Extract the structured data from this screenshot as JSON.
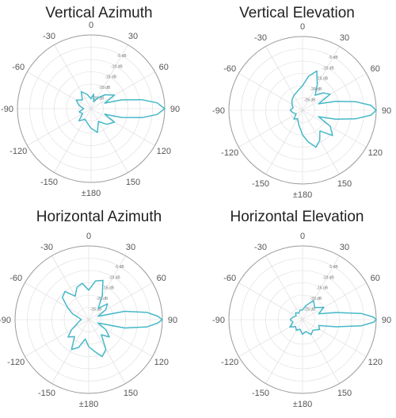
{
  "chart_data": [
    {
      "type": "polar",
      "title": "Vertical Azimuth",
      "angle_labels": [
        "0",
        "30",
        "60",
        "90",
        "120",
        "150",
        "±180",
        "-150",
        "-120",
        "-90",
        "-60",
        "-30"
      ],
      "radial_labels": [
        "-5 dB",
        "-10 dB",
        "-15 dB",
        "-20 dB",
        "-25 dB"
      ],
      "rlim_db": [
        -30,
        0
      ],
      "series_color": "#46b8c8",
      "points": [
        {
          "angle": 0,
          "db": -26
        },
        {
          "angle": 10,
          "db": -24
        },
        {
          "angle": 20,
          "db": -27
        },
        {
          "angle": 30,
          "db": -25
        },
        {
          "angle": 45,
          "db": -22
        },
        {
          "angle": 60,
          "db": -19
        },
        {
          "angle": 68,
          "db": -24
        },
        {
          "angle": 74,
          "db": -17
        },
        {
          "angle": 80,
          "db": -9
        },
        {
          "angle": 85,
          "db": -3
        },
        {
          "angle": 90,
          "db": 0
        },
        {
          "angle": 95,
          "db": -3
        },
        {
          "angle": 100,
          "db": -9
        },
        {
          "angle": 106,
          "db": -17
        },
        {
          "angle": 112,
          "db": -24
        },
        {
          "angle": 120,
          "db": -19
        },
        {
          "angle": 135,
          "db": -21
        },
        {
          "angle": 150,
          "db": -24
        },
        {
          "angle": 165,
          "db": -20
        },
        {
          "angle": 180,
          "db": -22
        },
        {
          "angle": 195,
          "db": -24
        },
        {
          "angle": 210,
          "db": -25
        },
        {
          "angle": 225,
          "db": -23
        },
        {
          "angle": 240,
          "db": -26
        },
        {
          "angle": 255,
          "db": -25
        },
        {
          "angle": 270,
          "db": -27
        },
        {
          "angle": 285,
          "db": -25
        },
        {
          "angle": 300,
          "db": -23
        },
        {
          "angle": 315,
          "db": -25
        },
        {
          "angle": 330,
          "db": -22
        },
        {
          "angle": 345,
          "db": -24
        }
      ]
    },
    {
      "type": "polar",
      "title": "Vertical Elevation",
      "angle_labels": [
        "0",
        "30",
        "60",
        "90",
        "120",
        "150",
        "±180",
        "-150",
        "-120",
        "-90",
        "-60",
        "-30"
      ],
      "radial_labels": [
        "-5 dB",
        "-10 dB",
        "-15 dB",
        "-20 dB",
        "-25 dB"
      ],
      "rlim_db": [
        -30,
        0
      ],
      "series_color": "#46b8c8",
      "points": [
        {
          "angle": 0,
          "db": -20
        },
        {
          "angle": 10,
          "db": -16
        },
        {
          "angle": 20,
          "db": -13
        },
        {
          "angle": 30,
          "db": -18
        },
        {
          "angle": 40,
          "db": -22
        },
        {
          "angle": 50,
          "db": -19
        },
        {
          "angle": 60,
          "db": -17
        },
        {
          "angle": 68,
          "db": -23
        },
        {
          "angle": 75,
          "db": -16
        },
        {
          "angle": 81,
          "db": -8
        },
        {
          "angle": 86,
          "db": -2
        },
        {
          "angle": 90,
          "db": 0
        },
        {
          "angle": 94,
          "db": -2
        },
        {
          "angle": 99,
          "db": -8
        },
        {
          "angle": 105,
          "db": -16
        },
        {
          "angle": 112,
          "db": -23
        },
        {
          "angle": 120,
          "db": -17
        },
        {
          "angle": 130,
          "db": -14
        },
        {
          "angle": 140,
          "db": -19
        },
        {
          "angle": 150,
          "db": -16
        },
        {
          "angle": 160,
          "db": -14
        },
        {
          "angle": 170,
          "db": -17
        },
        {
          "angle": 180,
          "db": -20
        },
        {
          "angle": 195,
          "db": -24
        },
        {
          "angle": 210,
          "db": -26
        },
        {
          "angle": 225,
          "db": -25
        },
        {
          "angle": 240,
          "db": -27
        },
        {
          "angle": 255,
          "db": -26
        },
        {
          "angle": 270,
          "db": -25
        },
        {
          "angle": 285,
          "db": -26
        },
        {
          "angle": 300,
          "db": -25
        },
        {
          "angle": 315,
          "db": -24
        },
        {
          "angle": 330,
          "db": -23
        },
        {
          "angle": 345,
          "db": -22
        }
      ]
    },
    {
      "type": "polar",
      "title": "Horizontal Azimuth",
      "angle_labels": [
        "0",
        "30",
        "60",
        "90",
        "120",
        "150",
        "±180",
        "-150",
        "-120",
        "-90",
        "-60",
        "-30"
      ],
      "radial_labels": [
        "-5 dB",
        "-10 dB",
        "-15 dB",
        "-20 dB",
        "-25 dB"
      ],
      "rlim_db": [
        -30,
        0
      ],
      "series_color": "#46b8c8",
      "points": [
        {
          "angle": 0,
          "db": -18
        },
        {
          "angle": 10,
          "db": -14
        },
        {
          "angle": 20,
          "db": -13
        },
        {
          "angle": 30,
          "db": -19
        },
        {
          "angle": 40,
          "db": -24
        },
        {
          "angle": 50,
          "db": -20
        },
        {
          "angle": 60,
          "db": -22
        },
        {
          "angle": 70,
          "db": -26
        },
        {
          "angle": 77,
          "db": -15
        },
        {
          "angle": 83,
          "db": -6
        },
        {
          "angle": 87,
          "db": -2
        },
        {
          "angle": 90,
          "db": 0
        },
        {
          "angle": 93,
          "db": -2
        },
        {
          "angle": 97,
          "db": -6
        },
        {
          "angle": 103,
          "db": -15
        },
        {
          "angle": 110,
          "db": -26
        },
        {
          "angle": 120,
          "db": -22
        },
        {
          "angle": 130,
          "db": -19
        },
        {
          "angle": 140,
          "db": -22
        },
        {
          "angle": 150,
          "db": -16
        },
        {
          "angle": 160,
          "db": -14
        },
        {
          "angle": 170,
          "db": -17
        },
        {
          "angle": 180,
          "db": -19
        },
        {
          "angle": 190,
          "db": -22
        },
        {
          "angle": 200,
          "db": -18
        },
        {
          "angle": 210,
          "db": -16
        },
        {
          "angle": 220,
          "db": -21
        },
        {
          "angle": 230,
          "db": -19
        },
        {
          "angle": 240,
          "db": -22
        },
        {
          "angle": 250,
          "db": -25
        },
        {
          "angle": 260,
          "db": -26
        },
        {
          "angle": 270,
          "db": -27
        },
        {
          "angle": 280,
          "db": -26
        },
        {
          "angle": 290,
          "db": -23
        },
        {
          "angle": 300,
          "db": -20
        },
        {
          "angle": 310,
          "db": -16
        },
        {
          "angle": 320,
          "db": -15
        },
        {
          "angle": 330,
          "db": -19
        },
        {
          "angle": 340,
          "db": -16
        },
        {
          "angle": 350,
          "db": -15
        }
      ]
    },
    {
      "type": "polar",
      "title": "Horizontal Elevation",
      "angle_labels": [
        "0",
        "30",
        "60",
        "90",
        "120",
        "150",
        "±180",
        "-150",
        "-120",
        "-90",
        "-60",
        "-30"
      ],
      "radial_labels": [
        "-5 dB",
        "-10 dB",
        "-15 dB",
        "-20 dB",
        "-25 dB"
      ],
      "rlim_db": [
        -30,
        0
      ],
      "series_color": "#46b8c8",
      "points": [
        {
          "angle": 0,
          "db": -26
        },
        {
          "angle": 15,
          "db": -24
        },
        {
          "angle": 30,
          "db": -21
        },
        {
          "angle": 45,
          "db": -23
        },
        {
          "angle": 60,
          "db": -20
        },
        {
          "angle": 70,
          "db": -23
        },
        {
          "angle": 78,
          "db": -16
        },
        {
          "angle": 84,
          "db": -6
        },
        {
          "angle": 88,
          "db": -1
        },
        {
          "angle": 90,
          "db": 0
        },
        {
          "angle": 92,
          "db": -1
        },
        {
          "angle": 96,
          "db": -6
        },
        {
          "angle": 102,
          "db": -16
        },
        {
          "angle": 110,
          "db": -23
        },
        {
          "angle": 120,
          "db": -22
        },
        {
          "angle": 135,
          "db": -24
        },
        {
          "angle": 150,
          "db": -23
        },
        {
          "angle": 165,
          "db": -25
        },
        {
          "angle": 180,
          "db": -24
        },
        {
          "angle": 195,
          "db": -26
        },
        {
          "angle": 210,
          "db": -25
        },
        {
          "angle": 225,
          "db": -26
        },
        {
          "angle": 240,
          "db": -24
        },
        {
          "angle": 255,
          "db": -26
        },
        {
          "angle": 270,
          "db": -25
        },
        {
          "angle": 285,
          "db": -26
        },
        {
          "angle": 300,
          "db": -27
        },
        {
          "angle": 315,
          "db": -26
        },
        {
          "angle": 330,
          "db": -27
        },
        {
          "angle": 345,
          "db": -26
        }
      ]
    }
  ]
}
